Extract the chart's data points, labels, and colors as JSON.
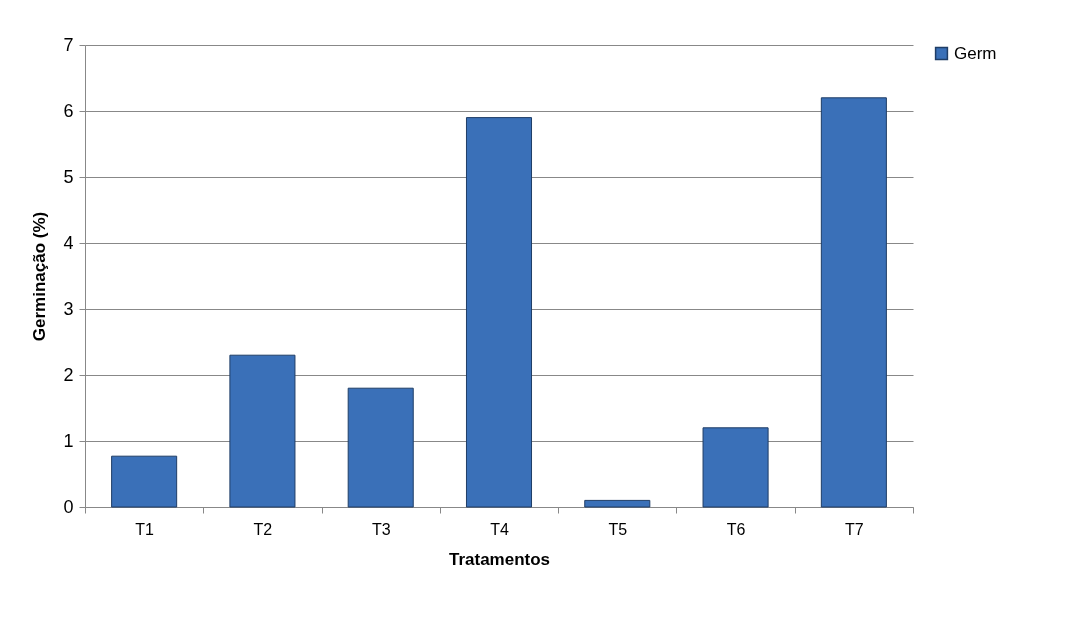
{
  "chart_data": {
    "type": "bar",
    "xlabel": "Tratamentos",
    "ylabel": "Germinação (%)",
    "categories": [
      "T1",
      "T2",
      "T3",
      "T4",
      "T5",
      "T6",
      "T7"
    ],
    "series": [
      {
        "name": "Germ",
        "color": "#3a70b8",
        "values": [
          0.77,
          2.3,
          1.8,
          5.9,
          0.1,
          1.2,
          6.2
        ]
      }
    ],
    "ylim": [
      0,
      7
    ],
    "yticks": [
      0,
      1,
      2,
      3,
      4,
      5,
      6,
      7
    ],
    "grid": "y",
    "legend": "right"
  }
}
